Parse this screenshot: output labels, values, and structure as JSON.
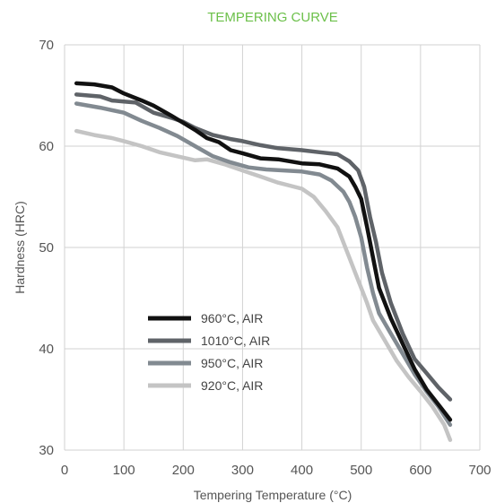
{
  "chart_data": {
    "type": "line",
    "title": "TEMPERING CURVE",
    "title_color": "#6cc04a",
    "xlabel": "Tempering Temperature (°C)",
    "ylabel": "Hardness (HRC)",
    "xlim": [
      0,
      700
    ],
    "ylim": [
      30,
      70
    ],
    "x_ticks": [
      "0",
      "100",
      "200",
      "300",
      "400",
      "500",
      "600",
      "700"
    ],
    "y_ticks": [
      "30",
      "40",
      "50",
      "60",
      "70"
    ],
    "grid": true,
    "legend_position": "lower-left",
    "series": [
      {
        "name": "960°C, AIR",
        "color": "#111111",
        "points": [
          [
            20,
            66.2
          ],
          [
            50,
            66.1
          ],
          [
            80,
            65.8
          ],
          [
            100,
            65.2
          ],
          [
            130,
            64.5
          ],
          [
            150,
            64
          ],
          [
            180,
            63
          ],
          [
            200,
            62.3
          ],
          [
            220,
            61.6
          ],
          [
            240,
            60.8
          ],
          [
            260,
            60.4
          ],
          [
            280,
            59.6
          ],
          [
            300,
            59.3
          ],
          [
            330,
            58.8
          ],
          [
            360,
            58.7
          ],
          [
            400,
            58.3
          ],
          [
            430,
            58.2
          ],
          [
            460,
            57.8
          ],
          [
            480,
            57
          ],
          [
            490,
            56
          ],
          [
            500,
            54.8
          ],
          [
            510,
            52
          ],
          [
            520,
            49
          ],
          [
            530,
            46
          ],
          [
            550,
            43
          ],
          [
            570,
            40.5
          ],
          [
            590,
            38
          ],
          [
            610,
            36
          ],
          [
            630,
            34.5
          ],
          [
            650,
            33
          ]
        ]
      },
      {
        "name": "1010°C, AIR",
        "color": "#5f6368",
        "points": [
          [
            20,
            65.1
          ],
          [
            60,
            64.9
          ],
          [
            80,
            64.5
          ],
          [
            100,
            64.4
          ],
          [
            120,
            64.3
          ],
          [
            150,
            63.3
          ],
          [
            180,
            62.8
          ],
          [
            200,
            62.4
          ],
          [
            220,
            61.8
          ],
          [
            250,
            61.1
          ],
          [
            280,
            60.7
          ],
          [
            300,
            60.5
          ],
          [
            330,
            60.1
          ],
          [
            360,
            59.8
          ],
          [
            400,
            59.6
          ],
          [
            430,
            59.4
          ],
          [
            460,
            59.2
          ],
          [
            480,
            58.5
          ],
          [
            495,
            57.6
          ],
          [
            505,
            56
          ],
          [
            515,
            53
          ],
          [
            525,
            50.5
          ],
          [
            535,
            47.5
          ],
          [
            550,
            44.5
          ],
          [
            570,
            41.5
          ],
          [
            590,
            39
          ],
          [
            610,
            37.6
          ],
          [
            630,
            36.2
          ],
          [
            650,
            35
          ]
        ]
      },
      {
        "name": "950°C, AIR",
        "color": "#828a91",
        "points": [
          [
            20,
            64.2
          ],
          [
            60,
            63.8
          ],
          [
            100,
            63.3
          ],
          [
            130,
            62.5
          ],
          [
            160,
            61.8
          ],
          [
            190,
            61
          ],
          [
            220,
            60
          ],
          [
            250,
            59
          ],
          [
            280,
            58.4
          ],
          [
            310,
            57.9
          ],
          [
            340,
            57.7
          ],
          [
            370,
            57.6
          ],
          [
            400,
            57.5
          ],
          [
            430,
            57.2
          ],
          [
            450,
            56.6
          ],
          [
            470,
            55.5
          ],
          [
            480,
            54.5
          ],
          [
            490,
            53
          ],
          [
            500,
            51
          ],
          [
            510,
            48
          ],
          [
            520,
            45.5
          ],
          [
            530,
            43.5
          ],
          [
            550,
            41.5
          ],
          [
            570,
            39.5
          ],
          [
            590,
            37.5
          ],
          [
            610,
            35.8
          ],
          [
            630,
            34.3
          ],
          [
            650,
            32.5
          ]
        ]
      },
      {
        "name": "920°C, AIR",
        "color": "#c4c4c4",
        "points": [
          [
            20,
            61.5
          ],
          [
            50,
            61.1
          ],
          [
            80,
            60.8
          ],
          [
            100,
            60.5
          ],
          [
            130,
            60
          ],
          [
            160,
            59.4
          ],
          [
            190,
            59
          ],
          [
            220,
            58.6
          ],
          [
            240,
            58.7
          ],
          [
            270,
            58.2
          ],
          [
            300,
            57.6
          ],
          [
            330,
            57
          ],
          [
            360,
            56.4
          ],
          [
            400,
            55.8
          ],
          [
            420,
            55
          ],
          [
            440,
            53.6
          ],
          [
            460,
            52
          ],
          [
            470,
            50.5
          ],
          [
            480,
            49
          ],
          [
            490,
            47.5
          ],
          [
            500,
            46
          ],
          [
            510,
            44.5
          ],
          [
            520,
            42.8
          ],
          [
            540,
            40.8
          ],
          [
            560,
            38.8
          ],
          [
            580,
            37.2
          ],
          [
            600,
            35.8
          ],
          [
            620,
            34.3
          ],
          [
            640,
            32.5
          ],
          [
            650,
            31
          ]
        ]
      }
    ]
  }
}
